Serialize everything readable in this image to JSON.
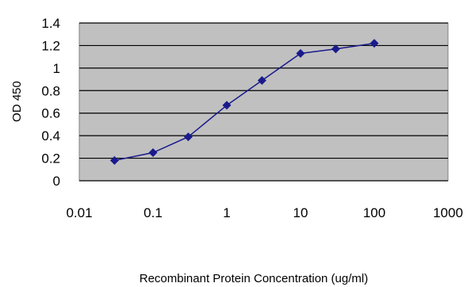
{
  "chart_data": {
    "type": "line",
    "title": "",
    "xlabel": "Recombinant Protein Concentration (ug/ml)",
    "ylabel": "OD 450",
    "x_scale": "log",
    "xlim": [
      0.01,
      1000
    ],
    "ylim": [
      0,
      1.4
    ],
    "x_ticks": [
      "0.01",
      "0.1",
      "1",
      "10",
      "100",
      "1000"
    ],
    "y_ticks": [
      "0",
      "0.2",
      "0.4",
      "0.6",
      "0.8",
      "1",
      "1.2",
      "1.4"
    ],
    "grid": "horizontal",
    "plot_background": "#c0c0c0",
    "series": [
      {
        "color": "#1a1a8c",
        "marker": "diamond",
        "x": [
          0.03,
          0.1,
          0.3,
          1,
          3,
          10,
          30,
          100
        ],
        "y": [
          0.18,
          0.25,
          0.39,
          0.67,
          0.89,
          1.13,
          1.17,
          1.22
        ]
      }
    ]
  }
}
